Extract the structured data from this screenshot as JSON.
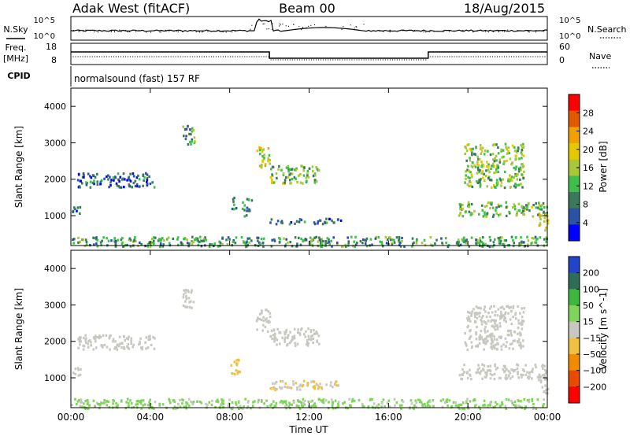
{
  "header": {
    "station": "Adak West (fitACF)",
    "beam": "Beam 00",
    "date": "18/Aug/2015"
  },
  "noise_panel": {
    "left_label": "N.Sky",
    "right_label": "N.Search",
    "left_ticks": [
      "10^5",
      "10^0"
    ],
    "right_ticks": [
      "10^5",
      "10^0"
    ]
  },
  "freq_panel": {
    "left_label": "Freq.",
    "left_unit": "[MHz]",
    "right_label": "Nave",
    "left_ticks": [
      "18",
      "8"
    ],
    "right_ticks": [
      "60",
      "0"
    ],
    "cpid_label": "CPID",
    "cpid_text": "normalsound (fast) 157 RF"
  },
  "colors": {
    "power_scale": [
      "#0000ff",
      "#2a52a6",
      "#3a7a5a",
      "#3fbf4a",
      "#a8c83a",
      "#e6c800",
      "#f0a000",
      "#e05a00",
      "#ff0000"
    ],
    "velocity_scale": [
      "#2244cc",
      "#2e6e58",
      "#3db83d",
      "#7fd45a",
      "#c8c8c0",
      "#f0c040",
      "#f08c00",
      "#e84a00",
      "#ff0000"
    ]
  },
  "chart_data": [
    {
      "type": "heatmap",
      "name": "power",
      "ylabel": "Slant Range [km]",
      "yticks": [
        "1000",
        "2000",
        "3000",
        "4000"
      ],
      "ylim": [
        180,
        4500
      ],
      "xlim": [
        0,
        24
      ],
      "colorbar": {
        "label": "Power [dB]",
        "ticks": [
          "4",
          "8",
          "12",
          "16",
          "20",
          "24",
          "28"
        ],
        "range": [
          0,
          30
        ]
      },
      "echo_regions": [
        {
          "t0": 0.0,
          "t1": 0.5,
          "r0": 1050,
          "r1": 1300,
          "v": 6
        },
        {
          "t0": 0.3,
          "t1": 4.2,
          "r0": 1800,
          "r1": 2200,
          "v": 6
        },
        {
          "t0": 5.6,
          "t1": 6.2,
          "r0": 2950,
          "r1": 3500,
          "v": 10
        },
        {
          "t0": 8.0,
          "t1": 8.3,
          "r0": 1200,
          "r1": 1550,
          "v": 8
        },
        {
          "t0": 8.6,
          "t1": 9.1,
          "r0": 1000,
          "r1": 1500,
          "v": 8
        },
        {
          "t0": 9.3,
          "t1": 10.0,
          "r0": 2300,
          "r1": 2900,
          "v": 16
        },
        {
          "t0": 10.0,
          "t1": 12.5,
          "r0": 1900,
          "r1": 2400,
          "v": 13
        },
        {
          "t0": 10.0,
          "t1": 13.6,
          "r0": 800,
          "r1": 950,
          "v": 7
        },
        {
          "t0": 19.5,
          "t1": 24.0,
          "r0": 1000,
          "r1": 1400,
          "v": 12
        },
        {
          "t0": 19.8,
          "t1": 22.8,
          "r0": 1800,
          "r1": 3000,
          "v": 13
        },
        {
          "t0": 23.5,
          "t1": 24.0,
          "r0": 600,
          "r1": 1100,
          "v": 18
        },
        {
          "t0": 0.0,
          "t1": 24.0,
          "r0": 180,
          "r1": 450,
          "v": 10
        }
      ]
    },
    {
      "type": "heatmap",
      "name": "velocity",
      "ylabel": "Slant Range [km]",
      "yticks": [
        "1000",
        "2000",
        "3000",
        "4000"
      ],
      "ylim": [
        180,
        4500
      ],
      "xlim": [
        0,
        24
      ],
      "colorbar": {
        "label": "Velocity [m s^-1]",
        "ticks": [
          "200",
          "100",
          "50",
          "15",
          "−15",
          "−50",
          "−100",
          "−200"
        ],
        "range": [
          -250,
          250
        ]
      },
      "echo_regions": [
        {
          "t0": 0.0,
          "t1": 0.5,
          "r0": 1050,
          "r1": 1300,
          "v": 0
        },
        {
          "t0": 0.3,
          "t1": 4.2,
          "r0": 1800,
          "r1": 2200,
          "v": 0
        },
        {
          "t0": 5.6,
          "t1": 6.2,
          "r0": 2950,
          "r1": 3500,
          "v": 0
        },
        {
          "t0": 8.0,
          "t1": 8.5,
          "r0": 1100,
          "r1": 1600,
          "v": -60
        },
        {
          "t0": 9.3,
          "t1": 10.0,
          "r0": 2300,
          "r1": 2900,
          "v": 0
        },
        {
          "t0": 10.0,
          "t1": 12.5,
          "r0": 1900,
          "r1": 2400,
          "v": 0
        },
        {
          "t0": 10.0,
          "t1": 13.6,
          "r0": 700,
          "r1": 950,
          "v": -30
        },
        {
          "t0": 19.5,
          "t1": 24.0,
          "r0": 1000,
          "r1": 1400,
          "v": 0
        },
        {
          "t0": 19.8,
          "t1": 22.8,
          "r0": 1800,
          "r1": 3000,
          "v": 0
        },
        {
          "t0": 23.5,
          "t1": 24.0,
          "r0": 600,
          "r1": 1100,
          "v": 0
        },
        {
          "t0": 0.0,
          "t1": 24.0,
          "r0": 180,
          "r1": 450,
          "v": 40
        }
      ]
    }
  ],
  "time_axis": {
    "label": "Time UT",
    "ticks": [
      "00:00",
      "04:00",
      "08:00",
      "12:00",
      "16:00",
      "20:00",
      "00:00"
    ]
  }
}
